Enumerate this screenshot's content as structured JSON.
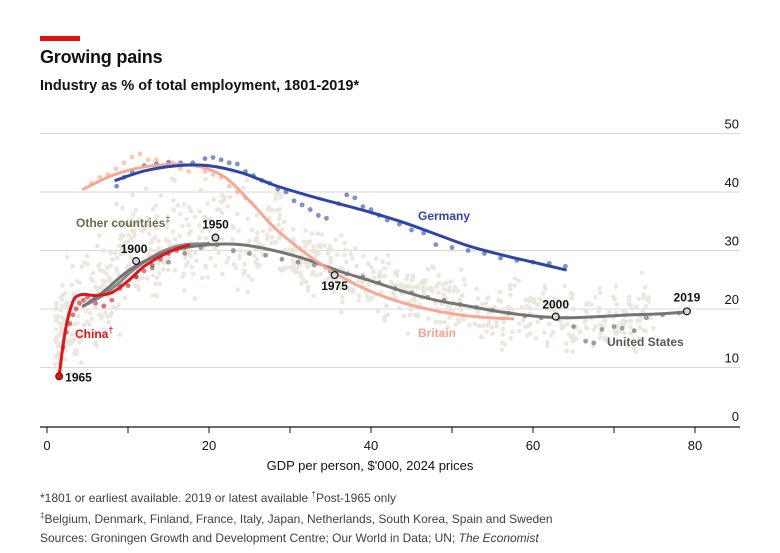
{
  "header": {
    "title": "Growing pains",
    "subtitle": "Industry as % of total employment, 1801-2019*"
  },
  "footnotes": {
    "line1_a": "*1801 or earliest available. 2019 or latest available ",
    "line1_dagger": "†",
    "line1_b": "Post-1965 only",
    "line2_dagger": "‡",
    "line2_text": "Belgium, Denmark, Finland, France, Italy, Japan, Netherlands, South Korea, Spain and Sweden",
    "line3_a": "Sources: Groningen Growth and Development Centre; Our World in Data; UN; ",
    "line3_em": "The Economist"
  },
  "colors": {
    "accent": "#e3120b",
    "germany": "#2e45a8",
    "britain": "#f4a48e",
    "us": "#757575",
    "china": "#d7191c",
    "other": "#ebe6dc",
    "grid": "#d9d9d9",
    "other_label": "#6d6a4f"
  },
  "chart_data": {
    "type": "scatter",
    "title": "Growing pains",
    "subtitle": "Industry as % of total employment, 1801-2019*",
    "xlabel": "GDP per person, $'000, 2024 prices",
    "ylabel": "",
    "xlim": [
      -1,
      85
    ],
    "ylim": [
      0,
      52
    ],
    "xticks": [
      0,
      20,
      40,
      60,
      80
    ],
    "yticks": [
      0,
      10,
      20,
      30,
      40,
      50
    ],
    "grid": "horizontal",
    "series": [
      {
        "name": "Germany",
        "color": "#2e45a8",
        "trend": [
          [
            8.5,
            42
          ],
          [
            12,
            43.6
          ],
          [
            16,
            44.5
          ],
          [
            20,
            44.5
          ],
          [
            24,
            43.3
          ],
          [
            28,
            41.2
          ],
          [
            32,
            39.5
          ],
          [
            36,
            38
          ],
          [
            40,
            36.5
          ],
          [
            44,
            34.8
          ],
          [
            48,
            32.8
          ],
          [
            52,
            30.8
          ],
          [
            56,
            29.3
          ],
          [
            60,
            28
          ],
          [
            64,
            26.7
          ]
        ],
        "points": [
          [
            8.6,
            41
          ],
          [
            9.5,
            42.5
          ],
          [
            10.5,
            43.5
          ],
          [
            12,
            44.5
          ],
          [
            13.5,
            44.8
          ],
          [
            15,
            45.1
          ],
          [
            16.5,
            45
          ],
          [
            18,
            45
          ],
          [
            19.5,
            45.7
          ],
          [
            20.5,
            45.9
          ],
          [
            21.5,
            45.5
          ],
          [
            22.5,
            45
          ],
          [
            23.5,
            44.8
          ],
          [
            24.5,
            43.5
          ],
          [
            25.5,
            42.8
          ],
          [
            26.5,
            42
          ],
          [
            27.5,
            41.5
          ],
          [
            28.5,
            40.5
          ],
          [
            29.5,
            40
          ],
          [
            30.5,
            38.5
          ],
          [
            31.5,
            37.8
          ],
          [
            32.5,
            37
          ],
          [
            33.5,
            36
          ],
          [
            34.5,
            35.5
          ],
          [
            36,
            38
          ],
          [
            37,
            39.5
          ],
          [
            38,
            39
          ],
          [
            39,
            37.5
          ],
          [
            40,
            37
          ],
          [
            41,
            36
          ],
          [
            42,
            35.2
          ],
          [
            43.5,
            34.5
          ],
          [
            45,
            33.5
          ],
          [
            46.5,
            33
          ],
          [
            48,
            31
          ],
          [
            50,
            30.5
          ],
          [
            52,
            30
          ],
          [
            54,
            29.5
          ],
          [
            56,
            28.7
          ],
          [
            58,
            28.3
          ],
          [
            60,
            28
          ],
          [
            62,
            27.8
          ],
          [
            64,
            27.3
          ]
        ]
      },
      {
        "name": "Britain",
        "color": "#f4a48e",
        "trend": [
          [
            4.5,
            40.5
          ],
          [
            8,
            42.8
          ],
          [
            12,
            44.3
          ],
          [
            16,
            44.7
          ],
          [
            19,
            44.3
          ],
          [
            22,
            42.5
          ],
          [
            25,
            38.5
          ],
          [
            28,
            34
          ],
          [
            31,
            30.5
          ],
          [
            34,
            27.5
          ],
          [
            37,
            25
          ],
          [
            40,
            23
          ],
          [
            44,
            21
          ],
          [
            48,
            19.7
          ],
          [
            52,
            18.8
          ],
          [
            57.5,
            18.3
          ]
        ],
        "points": [
          [
            5.5,
            41.5
          ],
          [
            6.5,
            42.5
          ],
          [
            7.5,
            43
          ],
          [
            8.5,
            44
          ],
          [
            9.5,
            45
          ],
          [
            10.5,
            46
          ],
          [
            11.5,
            46.5
          ],
          [
            12.5,
            45.5
          ],
          [
            13.5,
            45.5
          ],
          [
            14.5,
            44.5
          ],
          [
            15.5,
            45
          ],
          [
            16.5,
            44
          ],
          [
            17.5,
            43.5
          ],
          [
            18.5,
            44.5
          ],
          [
            19.5,
            43.5
          ],
          [
            20.5,
            43
          ],
          [
            21.5,
            42.5
          ],
          [
            22.5,
            41
          ],
          [
            23.5,
            40
          ],
          [
            24.5,
            39
          ]
        ]
      },
      {
        "name": "United States",
        "color": "#757575",
        "trend": [
          [
            4.5,
            20.5
          ],
          [
            7,
            23
          ],
          [
            10,
            26.5
          ],
          [
            13,
            28.8
          ],
          [
            16,
            30.2
          ],
          [
            20,
            31
          ],
          [
            24,
            31
          ],
          [
            28,
            30
          ],
          [
            32,
            28.5
          ],
          [
            36,
            26.5
          ],
          [
            40,
            24.8
          ],
          [
            44,
            23
          ],
          [
            48,
            21.5
          ],
          [
            52,
            20.5
          ],
          [
            56,
            19.5
          ],
          [
            60,
            18.8
          ],
          [
            64,
            18.5
          ],
          [
            68,
            18.7
          ],
          [
            72,
            19
          ],
          [
            76,
            19.2
          ],
          [
            79,
            19.5
          ]
        ],
        "points": [
          [
            9,
            24
          ],
          [
            11,
            25.5
          ],
          [
            13,
            27
          ],
          [
            15,
            28
          ],
          [
            17,
            29.5
          ],
          [
            19,
            30.5
          ],
          [
            21,
            31
          ],
          [
            23,
            30
          ],
          [
            25,
            29.5
          ],
          [
            27,
            29.2
          ],
          [
            29,
            28.5
          ],
          [
            31,
            28
          ],
          [
            33,
            27.5
          ],
          [
            35,
            26.5
          ],
          [
            37,
            26
          ],
          [
            39,
            25.5
          ],
          [
            41,
            24.5
          ],
          [
            43,
            23.5
          ],
          [
            45,
            22.8
          ],
          [
            47,
            22
          ],
          [
            49,
            21.5
          ],
          [
            51,
            20.8
          ],
          [
            53,
            20.3
          ],
          [
            55,
            19.8
          ],
          [
            57,
            19.3
          ],
          [
            59,
            18.8
          ],
          [
            61,
            18.5
          ],
          [
            63,
            18.3
          ],
          [
            65,
            17
          ],
          [
            66.5,
            14.5
          ],
          [
            67.5,
            14.2
          ],
          [
            68.5,
            16.5
          ],
          [
            70,
            17
          ],
          [
            71,
            16.7
          ],
          [
            72.5,
            16.3
          ],
          [
            74,
            18.5
          ],
          [
            76,
            19
          ],
          [
            78,
            19.3
          ]
        ]
      },
      {
        "name": "China",
        "color": "#d7191c",
        "trend": [
          [
            1.5,
            8.5
          ],
          [
            2,
            14
          ],
          [
            2.5,
            18
          ],
          [
            3,
            20.5
          ],
          [
            3.5,
            22
          ],
          [
            4.5,
            22.5
          ],
          [
            6,
            22.3
          ],
          [
            8,
            22.8
          ],
          [
            10,
            24.8
          ],
          [
            12,
            27.3
          ],
          [
            14,
            29
          ],
          [
            16,
            30.3
          ],
          [
            17.5,
            30.9
          ]
        ],
        "points": [
          [
            1.5,
            8.5
          ],
          [
            2,
            13.5
          ],
          [
            2.4,
            16
          ],
          [
            2.8,
            17.5
          ],
          [
            3.2,
            19
          ],
          [
            3.6,
            20
          ],
          [
            4,
            21
          ],
          [
            4.5,
            21.5
          ],
          [
            5,
            22
          ],
          [
            6,
            21
          ],
          [
            7,
            20.5
          ],
          [
            8,
            21.5
          ],
          [
            9,
            23.5
          ],
          [
            10,
            24
          ],
          [
            11,
            25.5
          ],
          [
            12,
            26.5
          ],
          [
            13,
            27.5
          ],
          [
            14,
            28.5
          ],
          [
            15,
            29.5
          ],
          [
            16,
            30
          ],
          [
            17,
            30.5
          ]
        ]
      },
      {
        "name": "Other countries",
        "color": "#ebe6dc",
        "trend": [
          [
            4.5,
            20.5
          ],
          [
            6.5,
            22
          ],
          [
            8.5,
            24
          ],
          [
            10.5,
            26.5
          ],
          [
            12.5,
            28.5
          ],
          [
            14.5,
            30
          ],
          [
            17,
            31
          ],
          [
            20,
            31.2
          ]
        ],
        "points": []
      }
    ],
    "year_markers": [
      {
        "label": "1965",
        "x": 1.5,
        "y": 8.5,
        "series": "China"
      },
      {
        "label": "1900",
        "x": 11,
        "y": 28.2,
        "series": "Other countries"
      },
      {
        "label": "1950",
        "x": 20.8,
        "y": 32.2,
        "series": "United States"
      },
      {
        "label": "1975",
        "x": 35.5,
        "y": 25.8,
        "series": "United States"
      },
      {
        "label": "2000",
        "x": 62.8,
        "y": 18.7,
        "series": "United States"
      },
      {
        "label": "2019",
        "x": 79,
        "y": 19.6,
        "series": "United States"
      }
    ],
    "series_labels": [
      {
        "text": "Germany",
        "series": "Germany"
      },
      {
        "text": "Britain",
        "series": "Britain"
      },
      {
        "text": "United States",
        "series": "United States"
      },
      {
        "text": "China",
        "sup": "†",
        "series": "China"
      },
      {
        "text": "Other countries",
        "sup": "‡",
        "series": "Other countries"
      }
    ]
  }
}
